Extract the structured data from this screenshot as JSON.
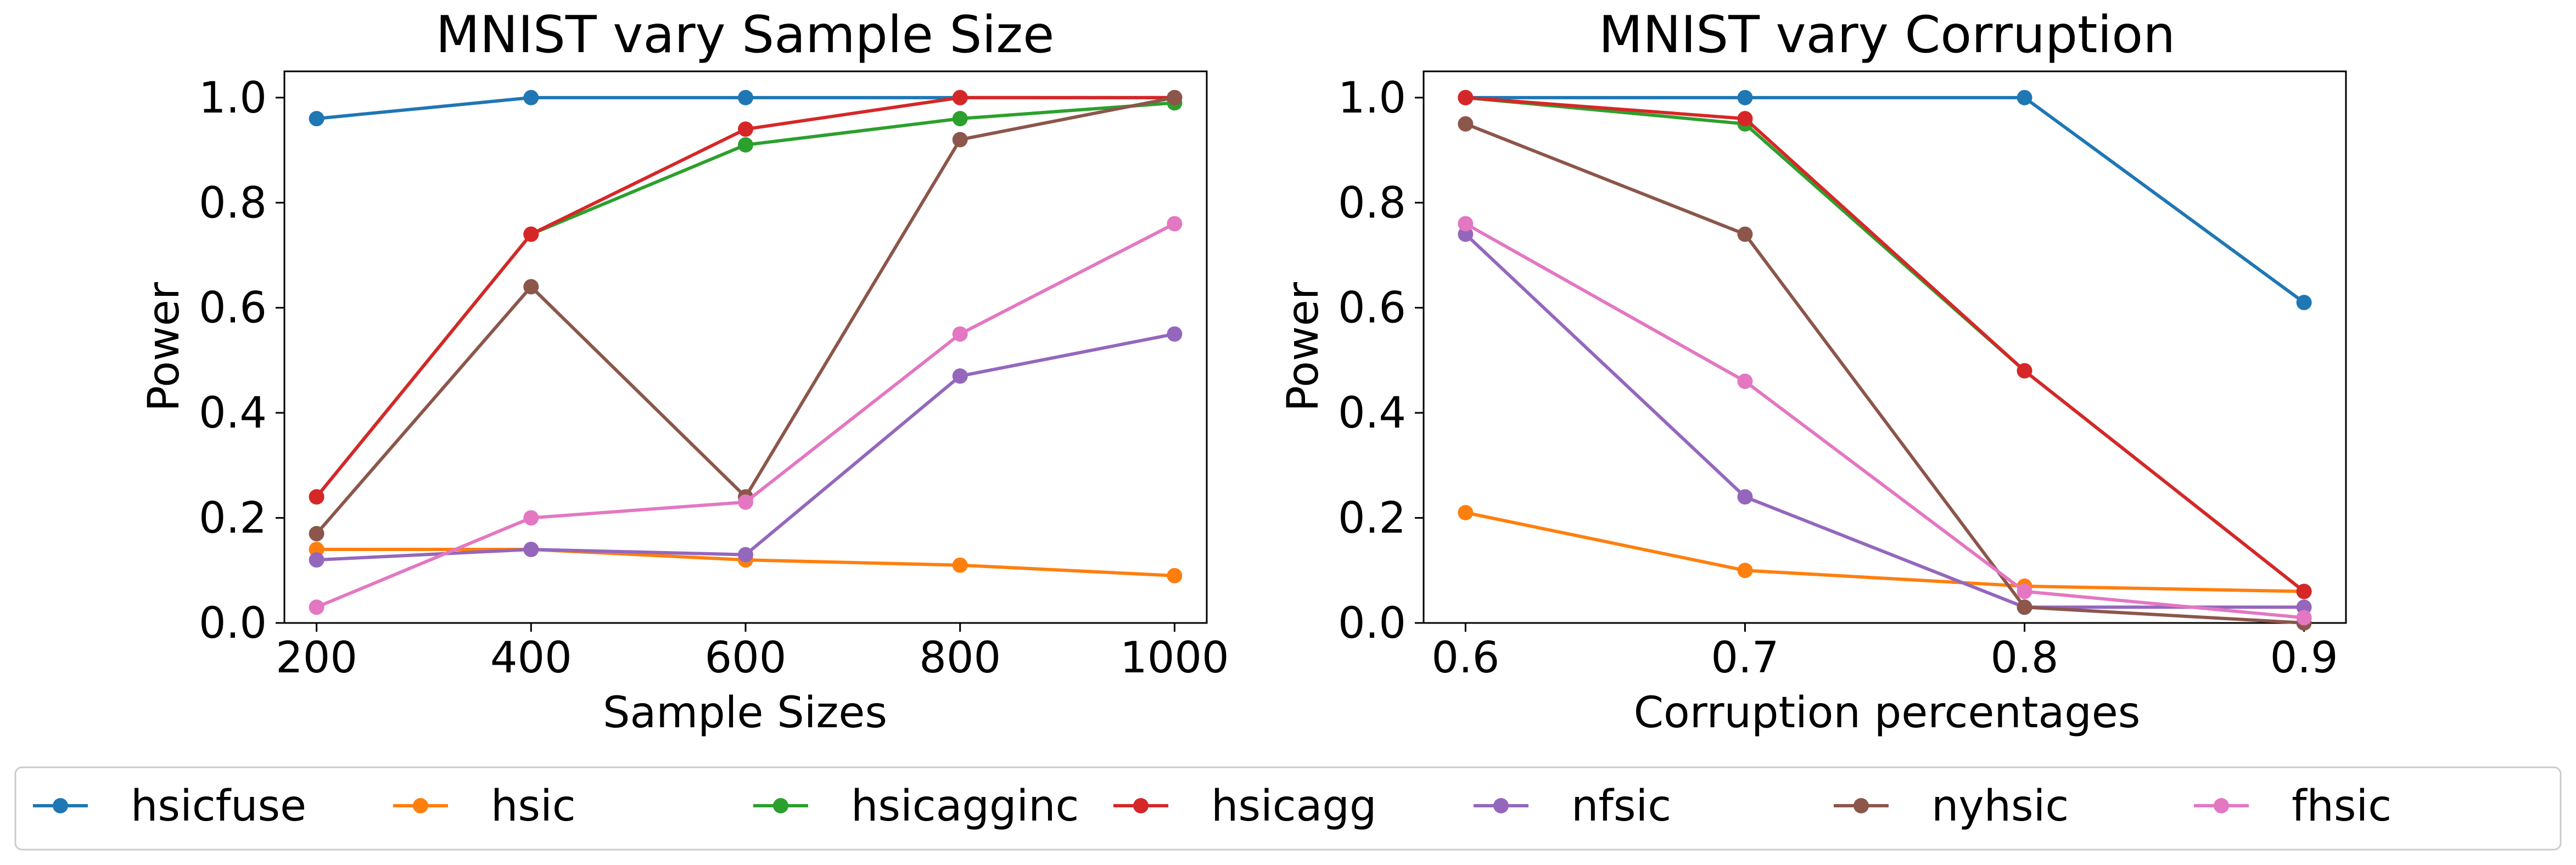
{
  "charts": [
    {
      "id": "left",
      "title": "MNIST vary Sample Size",
      "xlabel": "Sample Sizes",
      "ylabel": "Power",
      "xticks": [
        "200",
        "400",
        "600",
        "800",
        "1000"
      ],
      "yticks": [
        "0.0",
        "0.2",
        "0.4",
        "0.6",
        "0.8",
        "1.0"
      ]
    },
    {
      "id": "right",
      "title": "MNIST vary Corruption",
      "xlabel": "Corruption percentages",
      "ylabel": "Power",
      "xticks": [
        "0.6",
        "0.7",
        "0.8",
        "0.9"
      ],
      "yticks": [
        "0.0",
        "0.2",
        "0.4",
        "0.6",
        "0.8",
        "1.0"
      ]
    }
  ],
  "legend": [
    {
      "name": "hsicfuse",
      "color": "#1f77b4"
    },
    {
      "name": "hsic",
      "color": "#ff7f0e"
    },
    {
      "name": "hsicagginc",
      "color": "#2ca02c"
    },
    {
      "name": "hsicagg",
      "color": "#d62728"
    },
    {
      "name": "nfsic",
      "color": "#9467bd"
    },
    {
      "name": "nyhsic",
      "color": "#8c564b"
    },
    {
      "name": "fhsic",
      "color": "#e377c2"
    }
  ],
  "chart_data": [
    {
      "type": "line",
      "title": "MNIST vary Sample Size",
      "xlabel": "Sample Sizes",
      "ylabel": "Power",
      "x": [
        200,
        400,
        600,
        800,
        1000
      ],
      "xlim": [
        170,
        1030
      ],
      "ylim": [
        0,
        1.05
      ],
      "grid": false,
      "legend_position": "bottom",
      "series": [
        {
          "name": "hsicfuse",
          "color": "#1f77b4",
          "values": [
            0.96,
            1.0,
            1.0,
            1.0,
            1.0
          ]
        },
        {
          "name": "hsic",
          "color": "#ff7f0e",
          "values": [
            0.14,
            0.14,
            0.12,
            0.11,
            0.09
          ]
        },
        {
          "name": "hsicagginc",
          "color": "#2ca02c",
          "values": [
            0.24,
            0.74,
            0.91,
            0.96,
            0.99
          ]
        },
        {
          "name": "hsicagg",
          "color": "#d62728",
          "values": [
            0.24,
            0.74,
            0.94,
            1.0,
            1.0
          ]
        },
        {
          "name": "nfsic",
          "color": "#9467bd",
          "values": [
            0.12,
            0.14,
            0.13,
            0.47,
            0.55
          ]
        },
        {
          "name": "nyhsic",
          "color": "#8c564b",
          "values": [
            0.17,
            0.64,
            0.24,
            0.92,
            1.0
          ]
        },
        {
          "name": "fhsic",
          "color": "#e377c2",
          "values": [
            0.03,
            0.2,
            0.23,
            0.55,
            0.76
          ]
        }
      ]
    },
    {
      "type": "line",
      "title": "MNIST vary Corruption",
      "xlabel": "Corruption percentages",
      "ylabel": "Power",
      "x": [
        0.6,
        0.7,
        0.8,
        0.9
      ],
      "xlim": [
        0.585,
        0.915
      ],
      "ylim": [
        0,
        1.05
      ],
      "grid": false,
      "legend_position": "bottom",
      "series": [
        {
          "name": "hsicfuse",
          "color": "#1f77b4",
          "values": [
            1.0,
            1.0,
            1.0,
            0.61
          ]
        },
        {
          "name": "hsic",
          "color": "#ff7f0e",
          "values": [
            0.21,
            0.1,
            0.07,
            0.06
          ]
        },
        {
          "name": "hsicagginc",
          "color": "#2ca02c",
          "values": [
            1.0,
            0.95,
            0.48,
            0.06
          ]
        },
        {
          "name": "hsicagg",
          "color": "#d62728",
          "values": [
            1.0,
            0.96,
            0.48,
            0.06
          ]
        },
        {
          "name": "nfsic",
          "color": "#9467bd",
          "values": [
            0.74,
            0.24,
            0.03,
            0.03
          ]
        },
        {
          "name": "nyhsic",
          "color": "#8c564b",
          "values": [
            0.95,
            0.74,
            0.03,
            0.0
          ]
        },
        {
          "name": "fhsic",
          "color": "#e377c2",
          "values": [
            0.76,
            0.46,
            0.06,
            0.01
          ]
        }
      ]
    }
  ]
}
